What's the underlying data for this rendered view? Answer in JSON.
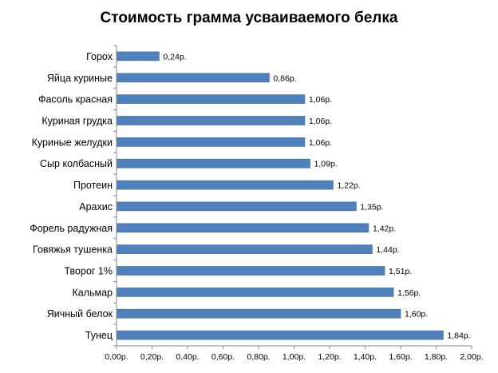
{
  "chart_data": {
    "type": "bar",
    "orientation": "horizontal",
    "title": "Стоимость грамма усваиваемого белка",
    "categories": [
      "Горох",
      "Яйца куриные",
      "Фасоль красная",
      "Куриная грудка",
      "Куриные желудки",
      "Сыр колбасный",
      "Протеин",
      "Арахис",
      "Форель радужная",
      "Говяжья тушенка",
      "Творог 1%",
      "Кальмар",
      "Яичный белок",
      "Тунец"
    ],
    "values": [
      0.24,
      0.86,
      1.06,
      1.06,
      1.06,
      1.09,
      1.22,
      1.35,
      1.42,
      1.44,
      1.51,
      1.56,
      1.6,
      1.84
    ],
    "value_labels": [
      "0,24р.",
      "0,86р.",
      "1,06р.",
      "1,06р.",
      "1,06р.",
      "1,09р.",
      "1,22р.",
      "1,35р.",
      "1,42р.",
      "1,44р.",
      "1,51р.",
      "1,56р.",
      "1,60р.",
      "1,84р."
    ],
    "xlim": [
      0,
      2.0
    ],
    "ticks": [
      0,
      0.2,
      0.4,
      0.6,
      0.8,
      1.0,
      1.2,
      1.4,
      1.6,
      1.8,
      2.0
    ],
    "tick_labels": [
      "0,00р.",
      "0,20р.",
      "0,40р.",
      "0,60р.",
      "0,80р.",
      "1,00р.",
      "1,20р.",
      "1,40р.",
      "1,60р.",
      "1,80р.",
      "2,00р."
    ],
    "grid": false,
    "legend": "none",
    "bar_color": "#4F81BD",
    "bar_border_color": "#3A6A9F",
    "axis_color": "#868686"
  }
}
